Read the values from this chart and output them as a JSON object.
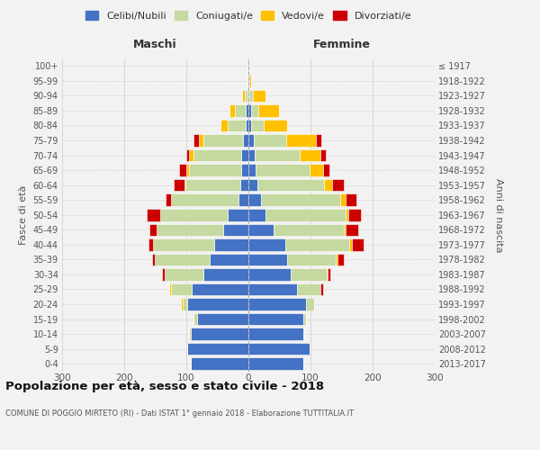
{
  "age_groups": [
    "0-4",
    "5-9",
    "10-14",
    "15-19",
    "20-24",
    "25-29",
    "30-34",
    "35-39",
    "40-44",
    "45-49",
    "50-54",
    "55-59",
    "60-64",
    "65-69",
    "70-74",
    "75-79",
    "80-84",
    "85-89",
    "90-94",
    "95-99",
    "100+"
  ],
  "birth_years": [
    "2013-2017",
    "2008-2012",
    "2003-2007",
    "1998-2002",
    "1993-1997",
    "1988-1992",
    "1983-1987",
    "1978-1982",
    "1973-1977",
    "1968-1972",
    "1963-1967",
    "1958-1962",
    "1953-1957",
    "1948-1952",
    "1943-1947",
    "1938-1942",
    "1933-1937",
    "1928-1932",
    "1923-1927",
    "1918-1922",
    "≤ 1917"
  ],
  "male_celibi": [
    93,
    98,
    93,
    83,
    98,
    92,
    72,
    63,
    55,
    40,
    34,
    16,
    13,
    11,
    11,
    9,
    5,
    4,
    2,
    1,
    1
  ],
  "male_coniugati": [
    0,
    0,
    2,
    5,
    8,
    33,
    63,
    88,
    98,
    108,
    108,
    108,
    88,
    85,
    78,
    63,
    28,
    18,
    4,
    1,
    0
  ],
  "male_vedovi": [
    0,
    0,
    0,
    0,
    2,
    3,
    0,
    0,
    0,
    0,
    0,
    0,
    2,
    4,
    6,
    8,
    12,
    8,
    4,
    0,
    0
  ],
  "male_divorziati": [
    0,
    0,
    0,
    0,
    0,
    0,
    4,
    4,
    8,
    12,
    22,
    10,
    18,
    12,
    5,
    8,
    0,
    0,
    0,
    0,
    0
  ],
  "female_nubili": [
    88,
    98,
    88,
    88,
    93,
    78,
    68,
    63,
    60,
    40,
    28,
    20,
    14,
    12,
    10,
    8,
    5,
    4,
    2,
    1,
    1
  ],
  "female_coniugate": [
    0,
    0,
    2,
    5,
    13,
    38,
    58,
    78,
    103,
    113,
    128,
    128,
    108,
    86,
    73,
    53,
    20,
    12,
    5,
    1,
    0
  ],
  "female_vedove": [
    0,
    0,
    0,
    0,
    0,
    0,
    2,
    2,
    4,
    4,
    5,
    8,
    13,
    23,
    33,
    48,
    38,
    33,
    20,
    2,
    0
  ],
  "female_divorziate": [
    0,
    0,
    0,
    0,
    0,
    4,
    4,
    10,
    18,
    20,
    20,
    18,
    18,
    10,
    8,
    8,
    0,
    0,
    0,
    0,
    0
  ],
  "colors": {
    "celibi": "#4472c4",
    "coniugati": "#c5d9a0",
    "vedovi": "#ffc000",
    "divorziati": "#cc0000"
  },
  "title": "Popolazione per età, sesso e stato civile - 2018",
  "subtitle": "COMUNE DI POGGIO MIRTETO (RI) - Dati ISTAT 1° gennaio 2018 - Elaborazione TUTTITALIA.IT",
  "bg_color": "#f2f2f2"
}
